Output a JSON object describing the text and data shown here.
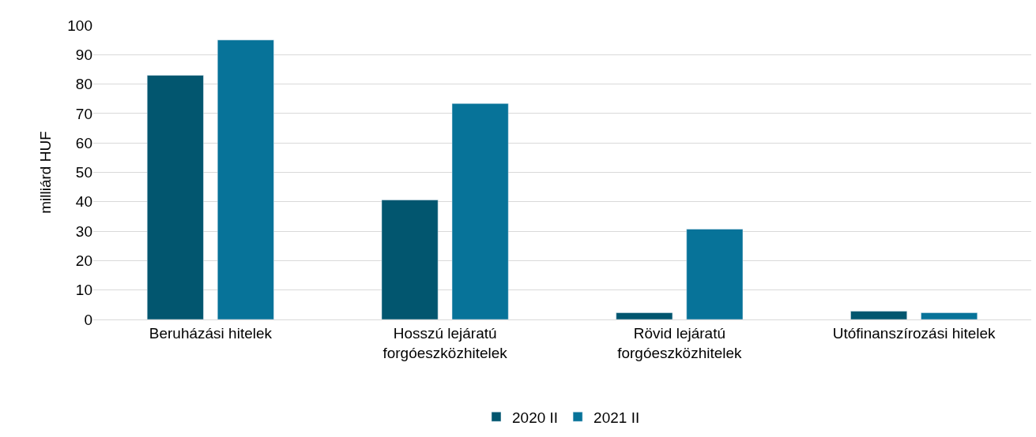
{
  "chart_data": {
    "type": "bar",
    "ylabel": "milliárd HUF",
    "categories": [
      "Beruházási hitelek",
      "Hosszú lejáratú\nforgóeszközhitelek",
      "Rövid lejáratú\nforgóeszközhitelek",
      "Utófinanszírozási hitelek"
    ],
    "series": [
      {
        "name": "2020 II",
        "color": "#02566f",
        "values": [
          83,
          40.6,
          2.3,
          2.8
        ]
      },
      {
        "name": "2021 II",
        "color": "#077399",
        "values": [
          95,
          73.4,
          30.7,
          2.3
        ]
      }
    ],
    "ylim": [
      0,
      100
    ],
    "yticks": [
      0,
      10,
      20,
      30,
      40,
      50,
      60,
      70,
      80,
      90,
      100
    ],
    "grid": "y",
    "legend": "bottom"
  }
}
